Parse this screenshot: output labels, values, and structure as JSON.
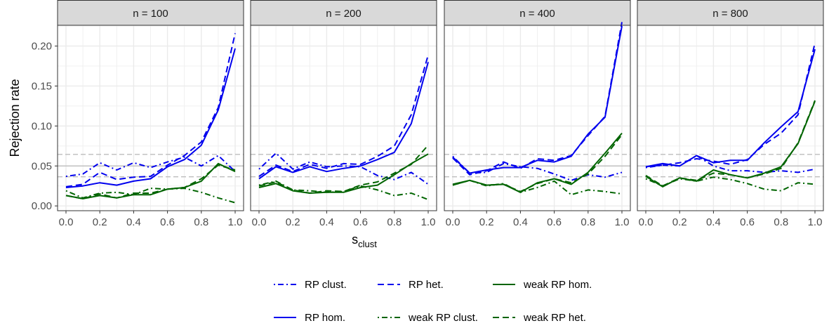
{
  "chart_data": {
    "type": "line",
    "ylabel": "Rejection rate",
    "xlabel_main": "s",
    "xlabel_sub": "clust",
    "xlim": [
      0,
      1
    ],
    "ylim": [
      -0.006,
      0.226
    ],
    "x": [
      0.0,
      0.1,
      0.2,
      0.3,
      0.4,
      0.5,
      0.6,
      0.7,
      0.8,
      0.9,
      1.0
    ],
    "x_ticks": [
      0.0,
      0.2,
      0.4,
      0.6,
      0.8,
      1.0
    ],
    "x_tick_labels": [
      "0.0",
      "0.2",
      "0.4",
      "0.6",
      "0.8",
      "1.0"
    ],
    "y_ticks": [
      0.0,
      0.05,
      0.1,
      0.15,
      0.2
    ],
    "y_tick_labels": [
      "0.00",
      "0.05",
      "0.10",
      "0.15",
      "0.20"
    ],
    "reference_lines": [
      {
        "y": 0.05,
        "style": "solid",
        "color": "#bdbdbd"
      },
      {
        "y": 0.0365,
        "style": "dashed",
        "color": "#bdbdbd"
      },
      {
        "y": 0.0645,
        "style": "dashed",
        "color": "#bdbdbd"
      }
    ],
    "grid": true,
    "legend_position": "bottom",
    "series_styles": {
      "RP clust.": {
        "color": "#0000ee",
        "dash": "dotdash"
      },
      "RP het.": {
        "color": "#0000ee",
        "dash": "dashed"
      },
      "RP hom.": {
        "color": "#0000ee",
        "dash": "solid"
      },
      "weak RP clust.": {
        "color": "#006400",
        "dash": "dotdash"
      },
      "weak RP het.": {
        "color": "#006400",
        "dash": "dashed"
      },
      "weak RP hom.": {
        "color": "#006400",
        "dash": "solid"
      }
    },
    "legend": {
      "row1": [
        "RP clust.",
        "RP het.",
        "weak RP hom."
      ],
      "row2": [
        "RP hom.",
        "weak RP clust.",
        "weak RP het."
      ]
    },
    "panels": [
      {
        "title": "n = 100",
        "series": [
          {
            "name": "RP clust.",
            "values": [
              0.037,
              0.04,
              0.054,
              0.045,
              0.054,
              0.048,
              0.055,
              0.061,
              0.05,
              0.063,
              0.043
            ]
          },
          {
            "name": "RP het.",
            "values": [
              0.024,
              0.027,
              0.042,
              0.033,
              0.036,
              0.037,
              0.051,
              0.063,
              0.08,
              0.123,
              0.216
            ]
          },
          {
            "name": "RP hom.",
            "values": [
              0.023,
              0.025,
              0.029,
              0.026,
              0.031,
              0.034,
              0.049,
              0.058,
              0.076,
              0.12,
              0.197
            ]
          },
          {
            "name": "weak RP clust.",
            "values": [
              0.019,
              0.01,
              0.016,
              0.017,
              0.014,
              0.022,
              0.021,
              0.022,
              0.017,
              0.01,
              0.004
            ]
          },
          {
            "name": "weak RP het.",
            "values": [
              0.013,
              0.009,
              0.015,
              0.01,
              0.016,
              0.016,
              0.021,
              0.023,
              0.034,
              0.051,
              0.045
            ]
          },
          {
            "name": "weak RP hom.",
            "values": [
              0.013,
              0.009,
              0.013,
              0.01,
              0.014,
              0.014,
              0.021,
              0.023,
              0.031,
              0.053,
              0.043
            ]
          }
        ]
      },
      {
        "title": "n = 200",
        "series": [
          {
            "name": "RP clust.",
            "values": [
              0.046,
              0.066,
              0.046,
              0.055,
              0.049,
              0.05,
              0.049,
              0.038,
              0.033,
              0.042,
              0.027
            ]
          },
          {
            "name": "RP het.",
            "values": [
              0.037,
              0.051,
              0.043,
              0.052,
              0.047,
              0.053,
              0.052,
              0.062,
              0.075,
              0.114,
              0.189
            ]
          },
          {
            "name": "RP hom.",
            "values": [
              0.034,
              0.049,
              0.042,
              0.049,
              0.043,
              0.047,
              0.05,
              0.058,
              0.067,
              0.103,
              0.18
            ]
          },
          {
            "name": "weak RP clust.",
            "values": [
              0.026,
              0.031,
              0.02,
              0.019,
              0.017,
              0.018,
              0.025,
              0.02,
              0.013,
              0.016,
              0.008
            ]
          },
          {
            "name": "weak RP het.",
            "values": [
              0.025,
              0.03,
              0.02,
              0.016,
              0.019,
              0.018,
              0.026,
              0.03,
              0.041,
              0.052,
              0.076
            ]
          },
          {
            "name": "weak RP hom.",
            "values": [
              0.023,
              0.028,
              0.019,
              0.016,
              0.017,
              0.017,
              0.023,
              0.026,
              0.039,
              0.053,
              0.065
            ]
          }
        ]
      },
      {
        "title": "n = 400",
        "series": [
          {
            "name": "RP clust.",
            "values": [
              0.062,
              0.041,
              0.042,
              0.053,
              0.049,
              0.047,
              0.04,
              0.032,
              0.039,
              0.036,
              0.042
            ]
          },
          {
            "name": "RP het.",
            "values": [
              0.06,
              0.039,
              0.044,
              0.055,
              0.047,
              0.059,
              0.057,
              0.063,
              0.088,
              0.112,
              0.23
            ]
          },
          {
            "name": "RP hom.",
            "values": [
              0.061,
              0.041,
              0.045,
              0.048,
              0.048,
              0.057,
              0.055,
              0.062,
              0.09,
              0.111,
              0.225
            ]
          },
          {
            "name": "weak RP clust.",
            "values": [
              0.026,
              0.032,
              0.025,
              0.028,
              0.017,
              0.023,
              0.031,
              0.014,
              0.02,
              0.018,
              0.015
            ]
          },
          {
            "name": "weak RP het.",
            "values": [
              0.026,
              0.032,
              0.026,
              0.027,
              0.018,
              0.028,
              0.034,
              0.029,
              0.04,
              0.062,
              0.089
            ]
          },
          {
            "name": "weak RP hom.",
            "values": [
              0.027,
              0.032,
              0.026,
              0.027,
              0.017,
              0.029,
              0.034,
              0.027,
              0.042,
              0.066,
              0.091
            ]
          }
        ]
      },
      {
        "title": "n = 800",
        "series": [
          {
            "name": "RP clust.",
            "values": [
              0.048,
              0.051,
              0.05,
              0.063,
              0.05,
              0.044,
              0.044,
              0.042,
              0.044,
              0.042,
              0.046
            ]
          },
          {
            "name": "RP het.",
            "values": [
              0.049,
              0.051,
              0.054,
              0.059,
              0.056,
              0.052,
              0.058,
              0.077,
              0.091,
              0.114,
              0.204
            ]
          },
          {
            "name": "RP hom.",
            "values": [
              0.049,
              0.053,
              0.05,
              0.063,
              0.054,
              0.057,
              0.057,
              0.079,
              0.099,
              0.118,
              0.196
            ]
          },
          {
            "name": "weak RP clust.",
            "values": [
              0.034,
              0.025,
              0.034,
              0.031,
              0.036,
              0.033,
              0.028,
              0.021,
              0.019,
              0.029,
              0.027
            ]
          },
          {
            "name": "weak RP het.",
            "values": [
              0.038,
              0.025,
              0.035,
              0.032,
              0.041,
              0.039,
              0.035,
              0.04,
              0.047,
              0.079,
              0.132
            ]
          },
          {
            "name": "weak RP hom.",
            "values": [
              0.037,
              0.024,
              0.035,
              0.031,
              0.045,
              0.039,
              0.035,
              0.041,
              0.049,
              0.078,
              0.131
            ]
          }
        ]
      }
    ]
  }
}
